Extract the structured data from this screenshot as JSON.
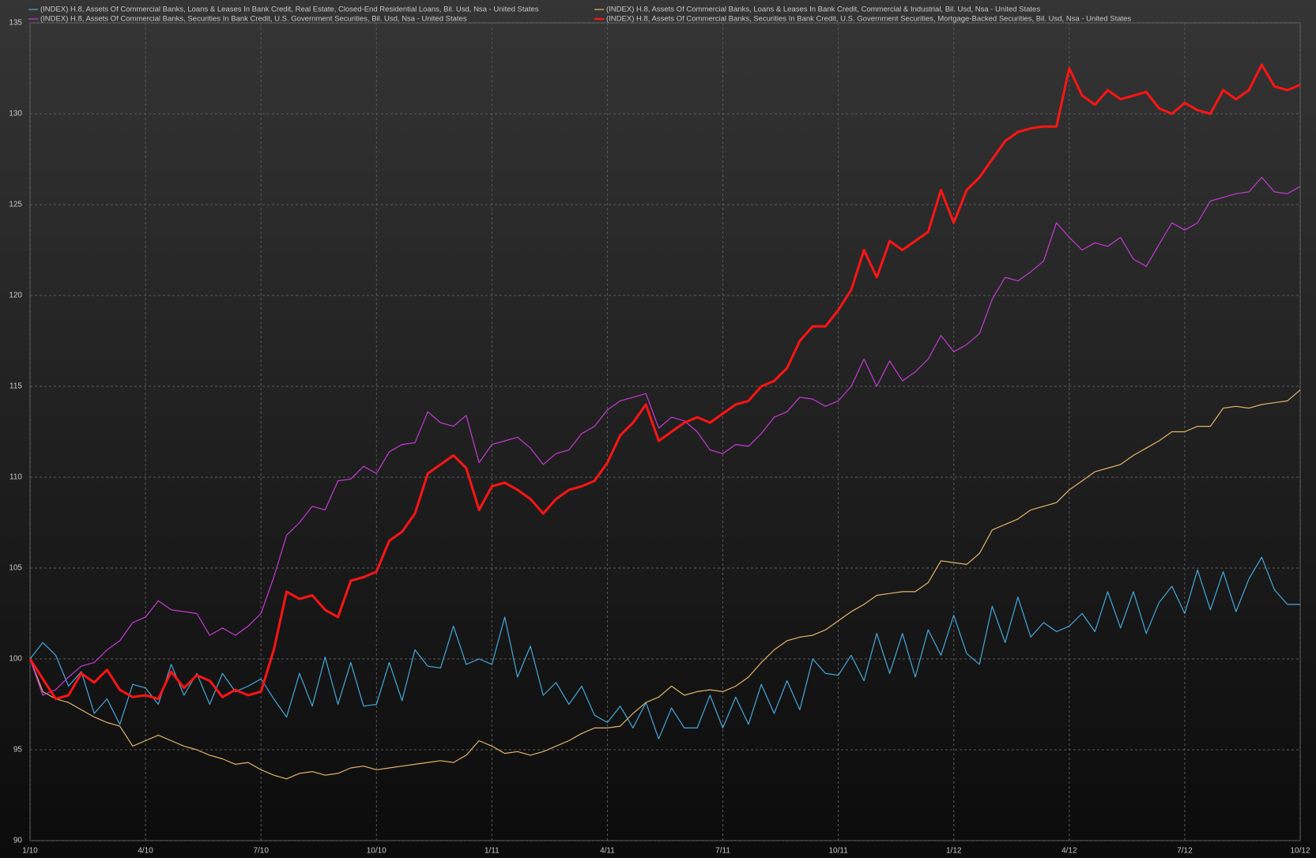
{
  "chart_data": {
    "type": "line",
    "categories": [
      "1/10",
      null,
      null,
      null,
      null,
      null,
      null,
      null,
      null,
      "4/10",
      null,
      null,
      null,
      null,
      null,
      null,
      null,
      null,
      "7/10",
      null,
      null,
      null,
      null,
      null,
      null,
      null,
      null,
      "10/10",
      null,
      null,
      null,
      null,
      null,
      null,
      null,
      null,
      "1/11",
      null,
      null,
      null,
      null,
      null,
      null,
      null,
      null,
      "4/11",
      null,
      null,
      null,
      null,
      null,
      null,
      null,
      null,
      "7/11",
      null,
      null,
      null,
      null,
      null,
      null,
      null,
      null,
      "10/11",
      null,
      null,
      null,
      null,
      null,
      null,
      null,
      null,
      "1/12",
      null,
      null,
      null,
      null,
      null,
      null,
      null,
      null,
      "4/12",
      null,
      null,
      null,
      null,
      null,
      null,
      null,
      null,
      "7/12",
      null,
      null,
      null,
      null,
      null,
      null,
      null,
      null,
      "10/12"
    ],
    "ylim": [
      90,
      135
    ],
    "yticks": [
      90,
      95,
      100,
      105,
      110,
      115,
      120,
      125,
      130,
      135
    ],
    "grid": true,
    "series": [
      {
        "name": "(INDEX) H.8, Assets Of Commercial Banks, Loans & Leases In Bank Credit, Real Estate, Closed-End Residential Loans, Bil. Usd, Nsa - United States",
        "color": "#45a8dc",
        "width": 1.2,
        "values": [
          100,
          100.9,
          100.2,
          98.5,
          99.3,
          97,
          97.8,
          96.4,
          98.6,
          98.4,
          97.5,
          99.7,
          98,
          99.2,
          97.5,
          99.2,
          98.2,
          98.5,
          98.9,
          97.8,
          96.8,
          99.2,
          97.4,
          100.1,
          97.5,
          99.8,
          97.4,
          97.5,
          99.8,
          97.7,
          100.5,
          99.6,
          99.5,
          101.8,
          99.7,
          100,
          99.7,
          102.3,
          99,
          100.7,
          98,
          98.7,
          97.5,
          98.5,
          96.9,
          96.5,
          97.4,
          96.2,
          97.6,
          95.6,
          97.3,
          96.2,
          96.2,
          98,
          96.2,
          97.9,
          96.4,
          98.6,
          97,
          98.8,
          97.2,
          100,
          99.2,
          99.1,
          100.2,
          98.8,
          101.4,
          99.2,
          101.4,
          99,
          101.6,
          100.2,
          102.4,
          100.3,
          99.7,
          102.9,
          100.9,
          103.4,
          101.2,
          102,
          101.5,
          101.8,
          102.5,
          101.5,
          103.7,
          101.7,
          103.7,
          101.4,
          103.1,
          104,
          102.5,
          104.9,
          102.7,
          104.8,
          102.6,
          104.4,
          105.6,
          103.8,
          103,
          103
        ]
      },
      {
        "name": "(INDEX) H.8, Assets Of Commercial Banks, Loans & Leases In Bank Credit, Commercial & Industrial, Bil. Usd, Nsa - United States",
        "color": "#e2b46c",
        "width": 1.2,
        "values": [
          100,
          98.2,
          97.8,
          97.6,
          97.2,
          96.8,
          96.5,
          96.3,
          95.2,
          95.5,
          95.8,
          95.5,
          95.2,
          95,
          94.7,
          94.5,
          94.2,
          94.3,
          93.9,
          93.6,
          93.4,
          93.7,
          93.8,
          93.6,
          93.7,
          94,
          94.1,
          93.9,
          94,
          94.1,
          94.2,
          94.3,
          94.4,
          94.3,
          94.7,
          95.5,
          95.2,
          94.8,
          94.9,
          94.7,
          94.9,
          95.2,
          95.5,
          95.9,
          96.2,
          96.2,
          96.3,
          97,
          97.6,
          97.9,
          98.5,
          98,
          98.2,
          98.3,
          98.2,
          98.5,
          99,
          99.8,
          100.5,
          101,
          101.2,
          101.3,
          101.6,
          102.1,
          102.6,
          103,
          103.5,
          103.6,
          103.7,
          103.7,
          104.2,
          105.4,
          105.3,
          105.2,
          105.8,
          107.1,
          107.4,
          107.7,
          108.2,
          108.4,
          108.6,
          109.3,
          109.8,
          110.3,
          110.5,
          110.7,
          111.2,
          111.6,
          112,
          112.5,
          112.5,
          112.8,
          112.8,
          113.8,
          113.9,
          113.8,
          114,
          114.1,
          114.2,
          114.8
        ]
      },
      {
        "name": "(INDEX) H.8, Assets Of Commercial Banks, Securities In Bank Credit, U.S. Government Securities, Bil. Usd, Nsa - United States",
        "color": "#c63ad6",
        "width": 1.2,
        "values": [
          100,
          98,
          98.3,
          99,
          99.6,
          99.8,
          100.5,
          101,
          102,
          102.3,
          103.2,
          102.7,
          102.6,
          102.5,
          101.3,
          101.7,
          101.3,
          101.8,
          102.5,
          104.5,
          106.8,
          107.5,
          108.4,
          108.2,
          109.8,
          109.9,
          110.6,
          110.2,
          111.4,
          111.8,
          111.9,
          113.6,
          113,
          112.8,
          113.4,
          110.8,
          111.8,
          112,
          112.2,
          111.6,
          110.7,
          111.3,
          111.5,
          112.4,
          112.8,
          113.7,
          114.2,
          114.4,
          114.6,
          112.7,
          113.3,
          113.1,
          112.5,
          111.5,
          111.3,
          111.8,
          111.7,
          112.4,
          113.3,
          113.6,
          114.4,
          114.3,
          113.9,
          114.2,
          115,
          116.5,
          115,
          116.4,
          115.3,
          115.8,
          116.5,
          117.8,
          116.9,
          117.3,
          117.9,
          119.8,
          121,
          120.8,
          121.3,
          121.9,
          124,
          123.2,
          122.5,
          122.9,
          122.7,
          123.2,
          122,
          121.6,
          122.8,
          124,
          123.6,
          124,
          125.2,
          125.4,
          125.6,
          125.7,
          126.5,
          125.7,
          125.6,
          126
        ]
      },
      {
        "name": "(INDEX) H.8, Assets Of Commercial Banks, Securities In Bank Credit, U.S. Government Securities, Mortgage-Backed Securities, Bil. Usd, Nsa - United States",
        "color": "#ff1414",
        "width": 3,
        "values": [
          100,
          98.9,
          97.8,
          98,
          99.2,
          98.7,
          99.4,
          98.3,
          97.9,
          98,
          97.8,
          99.3,
          98.4,
          99.1,
          98.8,
          97.9,
          98.3,
          98,
          98.2,
          100.5,
          103.7,
          103.3,
          103.5,
          102.7,
          102.3,
          104.3,
          104.5,
          104.8,
          106.5,
          107,
          108,
          110.2,
          110.7,
          111.2,
          110.5,
          108.2,
          109.5,
          109.7,
          109.3,
          108.8,
          108,
          108.8,
          109.3,
          109.5,
          109.8,
          110.8,
          112.3,
          113,
          114,
          112,
          112.5,
          113,
          113.3,
          113,
          113.5,
          114,
          114.2,
          115,
          115.3,
          116,
          117.5,
          118.3,
          118.3,
          119.2,
          120.3,
          122.5,
          121,
          123,
          122.5,
          123,
          123.5,
          125.8,
          124,
          125.8,
          126.5,
          127.5,
          128.5,
          129,
          129.2,
          129.3,
          129.3,
          132.5,
          131,
          130.5,
          131.3,
          130.8,
          131,
          131.2,
          130.3,
          130,
          130.6,
          130.2,
          130,
          131.3,
          130.8,
          131.3,
          132.7,
          131.5,
          131.3,
          131.6
        ]
      }
    ]
  }
}
